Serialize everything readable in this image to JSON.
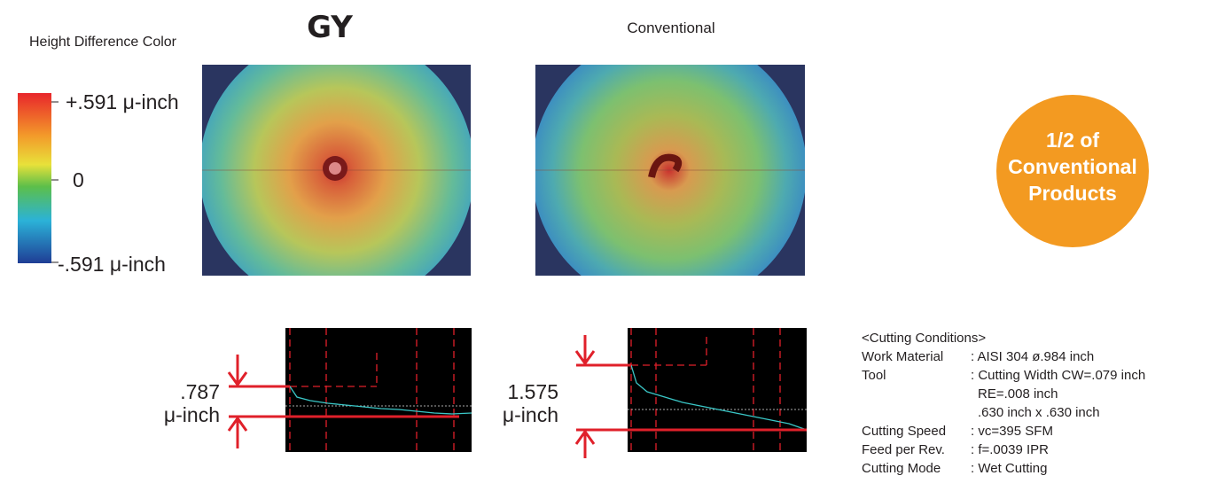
{
  "header": {
    "legend_title": "Height Difference Color",
    "gy_title": "GY",
    "conventional_title": "Conventional"
  },
  "color_scale": {
    "max": "+.591 μ-inch",
    "mid": "0",
    "min": "-.591 μ-inch"
  },
  "badge": {
    "lines": [
      "1/2 of",
      "Conventional",
      "Products"
    ]
  },
  "profiles": [
    {
      "value": ".787",
      "unit": "μ-inch"
    },
    {
      "value": "1.575",
      "unit": "μ-inch"
    }
  ],
  "cutting_conditions": {
    "title": "<Cutting Conditions>",
    "rows": [
      {
        "label": "Work Material",
        "lines": [
          ": AISI 304 ø.984 inch"
        ]
      },
      {
        "label": "Tool",
        "lines": [
          ": Cutting Width CW=.079 inch",
          "RE=.008 inch",
          ".630 inch x .630 inch"
        ]
      },
      {
        "label": "Cutting Speed",
        "lines": [
          ": vc=395 SFM"
        ]
      },
      {
        "label": "Feed per Rev.",
        "lines": [
          ": f=.0039 IPR"
        ]
      },
      {
        "label": "Cutting Mode",
        "lines": [
          ": Wet Cutting"
        ]
      }
    ]
  }
}
